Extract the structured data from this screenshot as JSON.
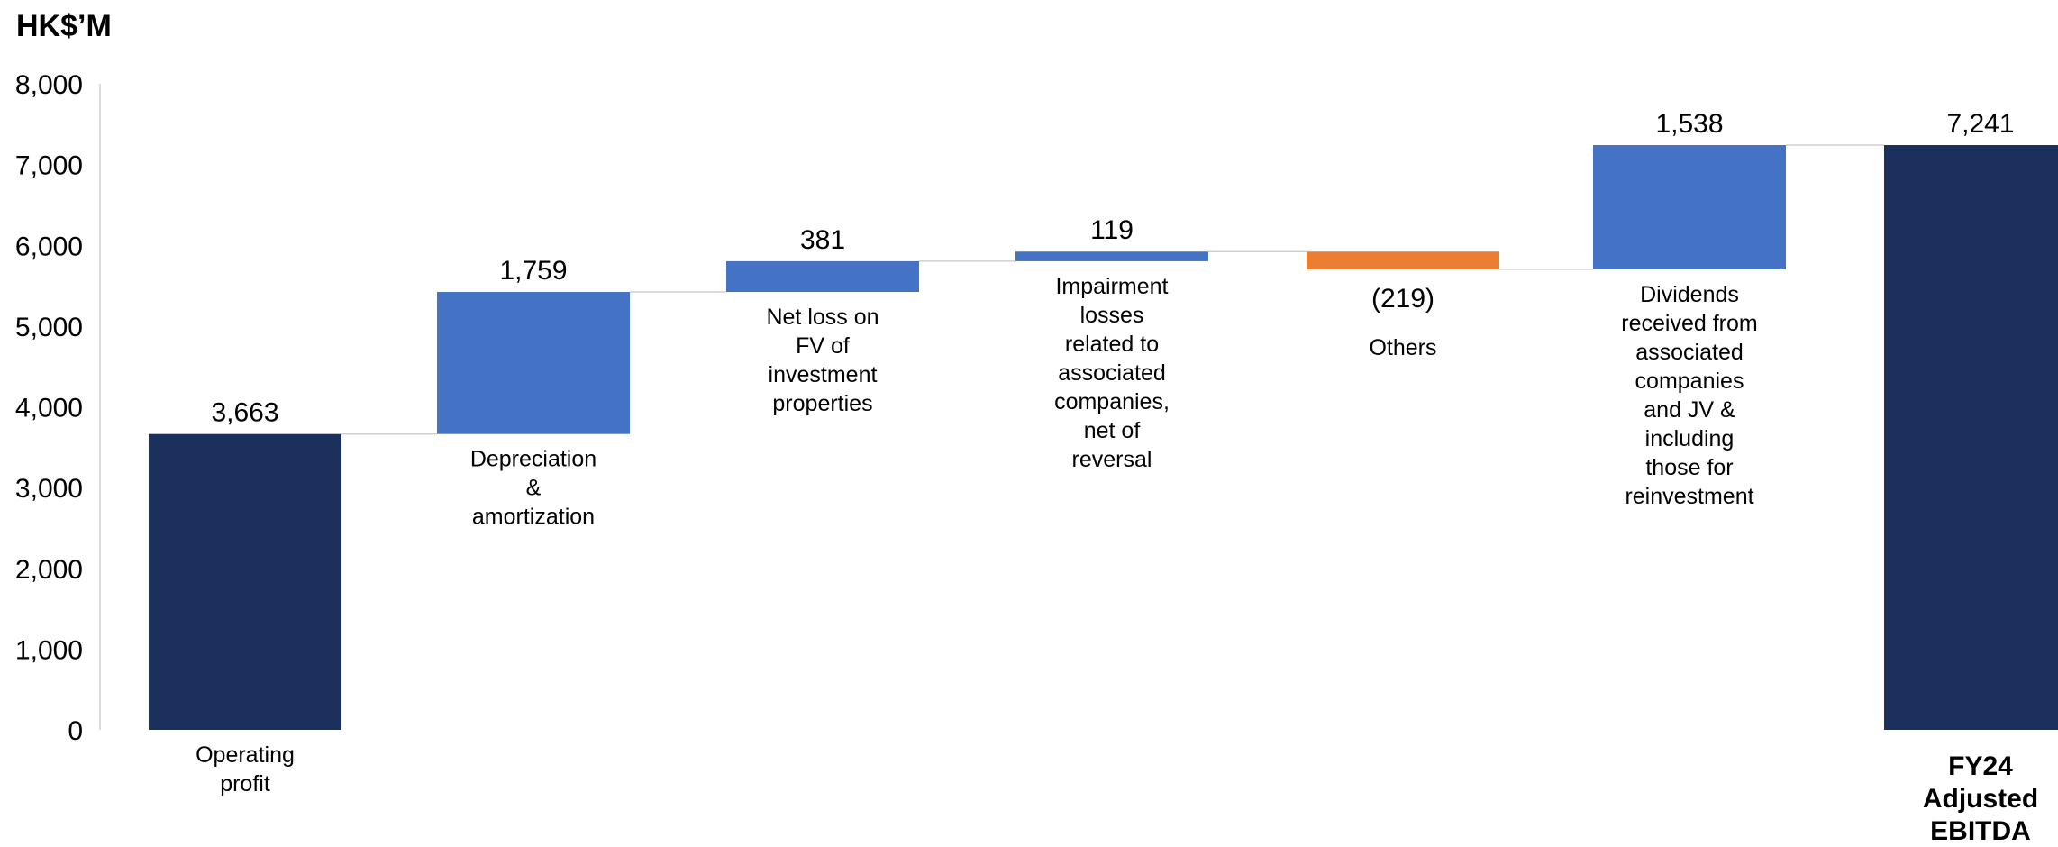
{
  "chart_data": {
    "type": "bar",
    "subtype": "waterfall",
    "unit_label": "HK$’M",
    "ylim": [
      0,
      8000
    ],
    "yticks": [
      "0",
      "1,000",
      "2,000",
      "3,000",
      "4,000",
      "5,000",
      "6,000",
      "7,000",
      "8,000"
    ],
    "grid": false,
    "legend": "none",
    "colors": {
      "total": "#1b305d",
      "increase": "#4472c4",
      "decrease": "#ed7d31",
      "connector": "#d0d0d0"
    },
    "bars": [
      {
        "kind": "total",
        "value": 3663,
        "value_label": "3,663",
        "category_lines": [
          "Operating",
          "profit"
        ]
      },
      {
        "kind": "increase",
        "value": 1759,
        "value_label": "1,759",
        "category_lines": [
          "Depreciation",
          "&",
          "amortization"
        ]
      },
      {
        "kind": "increase",
        "value": 381,
        "value_label": "381",
        "category_lines": [
          "Net loss on",
          "FV of",
          "investment",
          "properties"
        ]
      },
      {
        "kind": "increase",
        "value": 119,
        "value_label": "119",
        "category_lines": [
          "Impairment",
          "losses",
          "related to",
          "associated",
          "companies,",
          "net of",
          "reversal"
        ]
      },
      {
        "kind": "decrease",
        "value": -219,
        "value_label": "(219)",
        "category_lines": [
          "Others"
        ]
      },
      {
        "kind": "increase",
        "value": 1538,
        "value_label": "1,538",
        "category_lines": [
          "Dividends",
          "received from",
          "associated",
          "companies",
          "and JV &",
          "including",
          "those for",
          "reinvestment"
        ]
      },
      {
        "kind": "total",
        "value": 7241,
        "value_label": "7,241",
        "category_lines": [
          "FY24",
          "Adjusted",
          "EBITDA"
        ],
        "category_bold": true
      }
    ]
  }
}
